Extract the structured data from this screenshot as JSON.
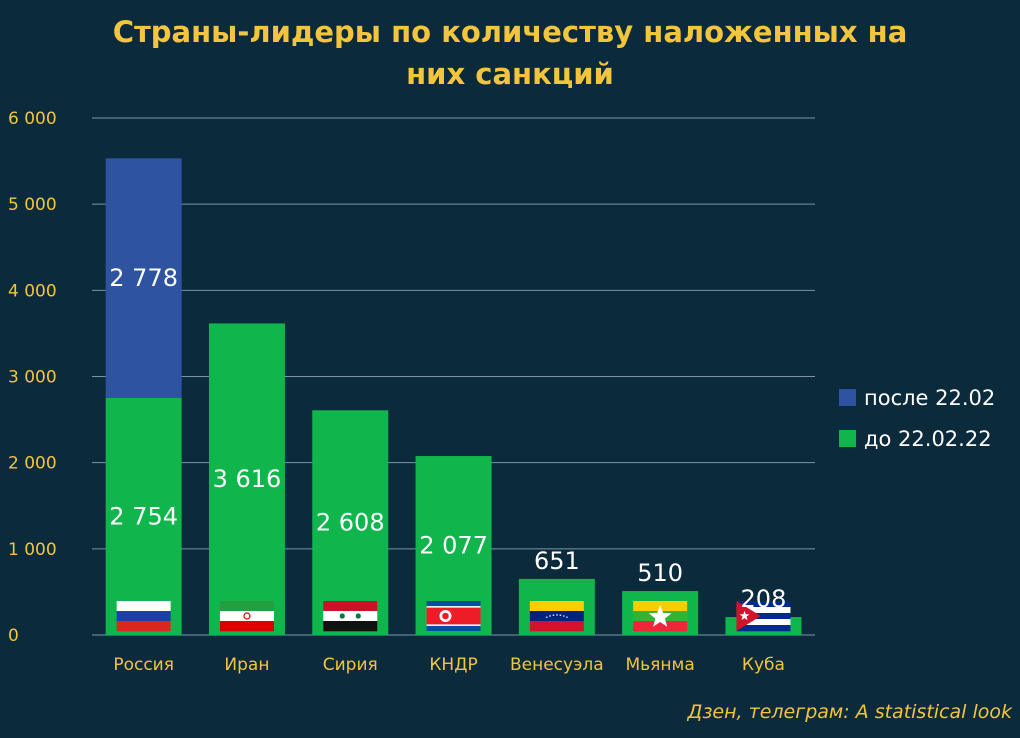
{
  "chart_data": {
    "type": "bar",
    "stacked": true,
    "title": "Страны-лидеры по количеству наложенных на них санкций",
    "title_lines": [
      "Страны-лидеры по количеству наложенных на",
      "них санкций"
    ],
    "categories": [
      "Россия",
      "Иран",
      "Сирия",
      "КНДР",
      "Венесуэла",
      "Мьянма",
      "Куба"
    ],
    "series": [
      {
        "name": "до 22.02.22",
        "color": "#10b54b",
        "values": [
          2754,
          3616,
          2608,
          2077,
          651,
          510,
          208
        ],
        "labels": [
          "2 754",
          "3 616",
          "2 608",
          "2 077",
          "651",
          "510",
          "208"
        ]
      },
      {
        "name": "после 22.02",
        "color": "#2e53a0",
        "values": [
          2778,
          0,
          0,
          0,
          0,
          0,
          0
        ],
        "labels": [
          "2 778",
          "",
          "",
          "",
          "",
          "",
          ""
        ]
      }
    ],
    "ylim": [
      0,
      6000
    ],
    "yticks": [
      0,
      1000,
      2000,
      3000,
      4000,
      5000,
      6000
    ],
    "ytick_labels": [
      "0",
      "1 000",
      "2 000",
      "3 000",
      "4 000",
      "5 000",
      "6 000"
    ],
    "grid": true,
    "legend_position": "right",
    "legend_order": [
      "после 22.02",
      "до 22.02.22"
    ],
    "flags": [
      "russia-flag",
      "iran-flag",
      "syria-flag",
      "north-korea-flag",
      "venezuela-flag",
      "myanmar-flag",
      "cuba-flag"
    ]
  },
  "source": "Дзен, телеграм: A statistical look"
}
